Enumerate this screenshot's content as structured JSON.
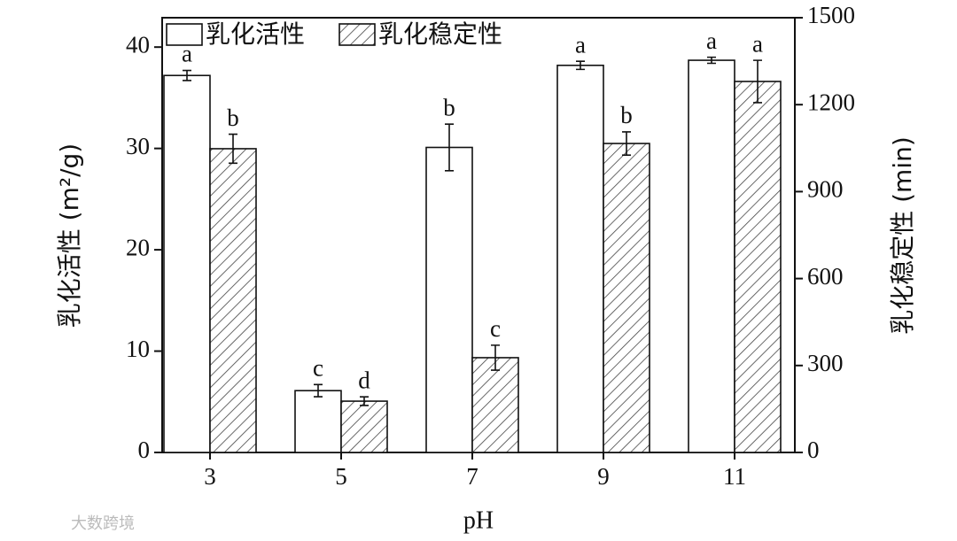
{
  "chart_data": {
    "type": "bar",
    "x_label": "pH",
    "y_label": "乳化活性 (m²/g)",
    "y2_label": "乳化稳定性 (min)",
    "categories": [
      "3",
      "5",
      "7",
      "9",
      "11"
    ],
    "series": [
      {
        "name": "乳化活性",
        "color": "#ffffff",
        "hatch": false,
        "axis": "y",
        "values": [
          37.2,
          6.1,
          30.1,
          38.2,
          38.7
        ],
        "errors": [
          0.5,
          0.6,
          2.3,
          0.4,
          0.3
        ],
        "letters": [
          "a",
          "c",
          "b",
          "a",
          "a"
        ]
      },
      {
        "name": "乳化稳定性",
        "color": "#ffffff",
        "hatch": true,
        "axis": "y2",
        "values": [
          1048,
          177,
          327,
          1066,
          1280
        ],
        "errors": [
          50,
          15,
          43,
          40,
          73
        ],
        "letters": [
          "b",
          "d",
          "c",
          "b",
          "a"
        ]
      }
    ],
    "ylim": [
      0,
      42.9
    ],
    "yticks": [
      0,
      10,
      20,
      30,
      40
    ],
    "y2lim": [
      0,
      1500
    ],
    "y2ticks": [
      0,
      300,
      600,
      900,
      1200,
      1500
    ],
    "legend": "top-left",
    "watermark": "大数跨境"
  }
}
